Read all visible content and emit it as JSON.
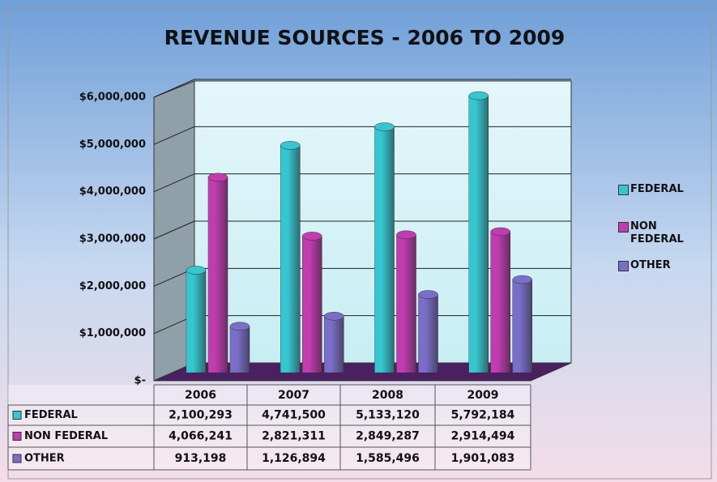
{
  "chart_data": {
    "type": "bar3d",
    "title": "REVENUE SOURCES - 2006 TO 2009",
    "categories": [
      "2006",
      "2007",
      "2008",
      "2009"
    ],
    "series": [
      {
        "name": "FEDERAL",
        "color": "#36c6d0",
        "values": [
          2100293,
          4741500,
          5133120,
          5792184
        ],
        "value_labels": [
          "2,100,293",
          "4,741,500",
          "5,133,120",
          "5,792,184"
        ]
      },
      {
        "name": "NON FEDERAL",
        "color": "#c03cb0",
        "values": [
          4066241,
          2821311,
          2849287,
          2914494
        ],
        "value_labels": [
          "4,066,241",
          "2,821,311",
          "2,849,287",
          "2,914,494"
        ]
      },
      {
        "name": "OTHER",
        "color": "#7a6ec8",
        "values": [
          913198,
          1126894,
          1585496,
          1901083
        ],
        "value_labels": [
          "913,198",
          "1,126,894",
          "1,585,496",
          "1,901,083"
        ]
      }
    ],
    "ylim": [
      0,
      6000000
    ],
    "yticks": [
      {
        "value": 0,
        "label": "$-"
      },
      {
        "value": 1000000,
        "label": "$1,000,000"
      },
      {
        "value": 2000000,
        "label": "$2,000,000"
      },
      {
        "value": 3000000,
        "label": "$3,000,000"
      },
      {
        "value": 4000000,
        "label": "$4,000,000"
      },
      {
        "value": 5000000,
        "label": "$5,000,000"
      },
      {
        "value": 6000000,
        "label": "$6,000,000"
      }
    ],
    "grid": true
  }
}
